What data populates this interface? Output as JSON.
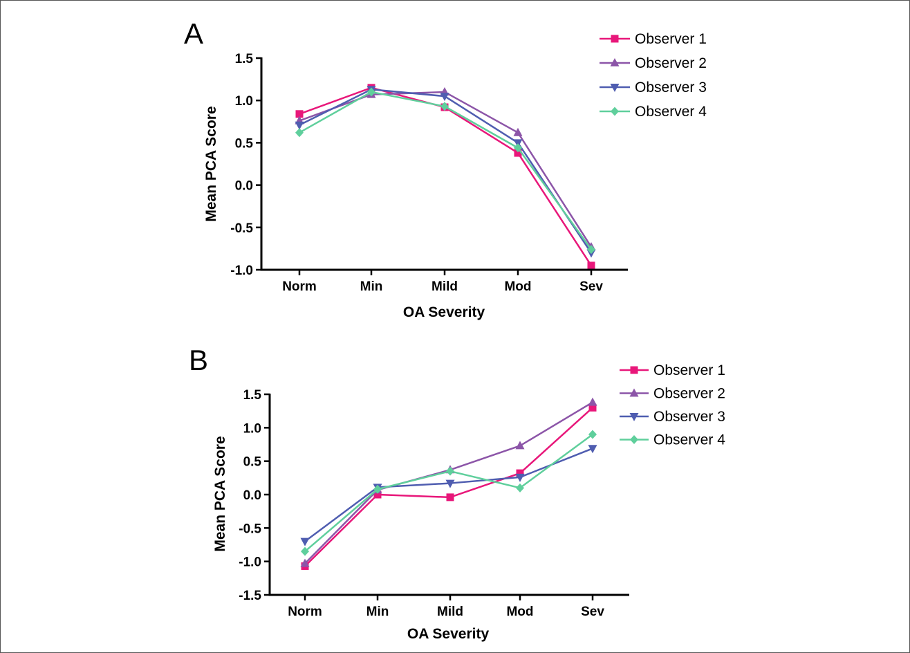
{
  "colors": {
    "Observer 1": "#e8177a",
    "Observer 2": "#8c55a8",
    "Observer 3": "#4f5db0",
    "Observer 4": "#5fcf9c"
  },
  "chart_data": [
    {
      "panel": "A",
      "type": "line",
      "xlabel": "OA Severity",
      "ylabel": "Mean PCA Score",
      "categories": [
        "Norm",
        "Min",
        "Mild",
        "Mod",
        "Sev"
      ],
      "ylim": [
        -1.0,
        1.5
      ],
      "yticks": [
        "-1.0",
        "-0.5",
        "0.0",
        "0.5",
        "1.0",
        "1.5"
      ],
      "legend_position": "top-right",
      "grid": false,
      "series": [
        {
          "name": "Observer 1",
          "marker": "square",
          "values": [
            0.84,
            1.15,
            0.92,
            0.38,
            -0.95
          ]
        },
        {
          "name": "Observer 2",
          "marker": "triangle-up",
          "values": [
            0.76,
            1.07,
            1.1,
            0.62,
            -0.73
          ]
        },
        {
          "name": "Observer 3",
          "marker": "triangle-down",
          "values": [
            0.71,
            1.13,
            1.05,
            0.5,
            -0.8
          ]
        },
        {
          "name": "Observer 4",
          "marker": "diamond",
          "values": [
            0.62,
            1.1,
            0.93,
            0.44,
            -0.76
          ]
        }
      ]
    },
    {
      "panel": "B",
      "type": "line",
      "xlabel": "OA Severity",
      "ylabel": "Mean PCA Score",
      "categories": [
        "Norm",
        "Min",
        "Mild",
        "Mod",
        "Sev"
      ],
      "ylim": [
        -1.5,
        1.5
      ],
      "yticks": [
        "-1.5",
        "-1.0",
        "-0.5",
        "0.0",
        "0.5",
        "1.0",
        "1.5"
      ],
      "legend_position": "top-right",
      "grid": false,
      "series": [
        {
          "name": "Observer 1",
          "marker": "square",
          "values": [
            -1.07,
            0.0,
            -0.04,
            0.32,
            1.3
          ]
        },
        {
          "name": "Observer 2",
          "marker": "triangle-up",
          "values": [
            -1.03,
            0.07,
            0.37,
            0.73,
            1.38
          ]
        },
        {
          "name": "Observer 3",
          "marker": "triangle-down",
          "values": [
            -0.7,
            0.11,
            0.17,
            0.26,
            0.69
          ]
        },
        {
          "name": "Observer 4",
          "marker": "diamond",
          "values": [
            -0.85,
            0.08,
            0.35,
            0.1,
            0.9
          ]
        }
      ]
    }
  ]
}
